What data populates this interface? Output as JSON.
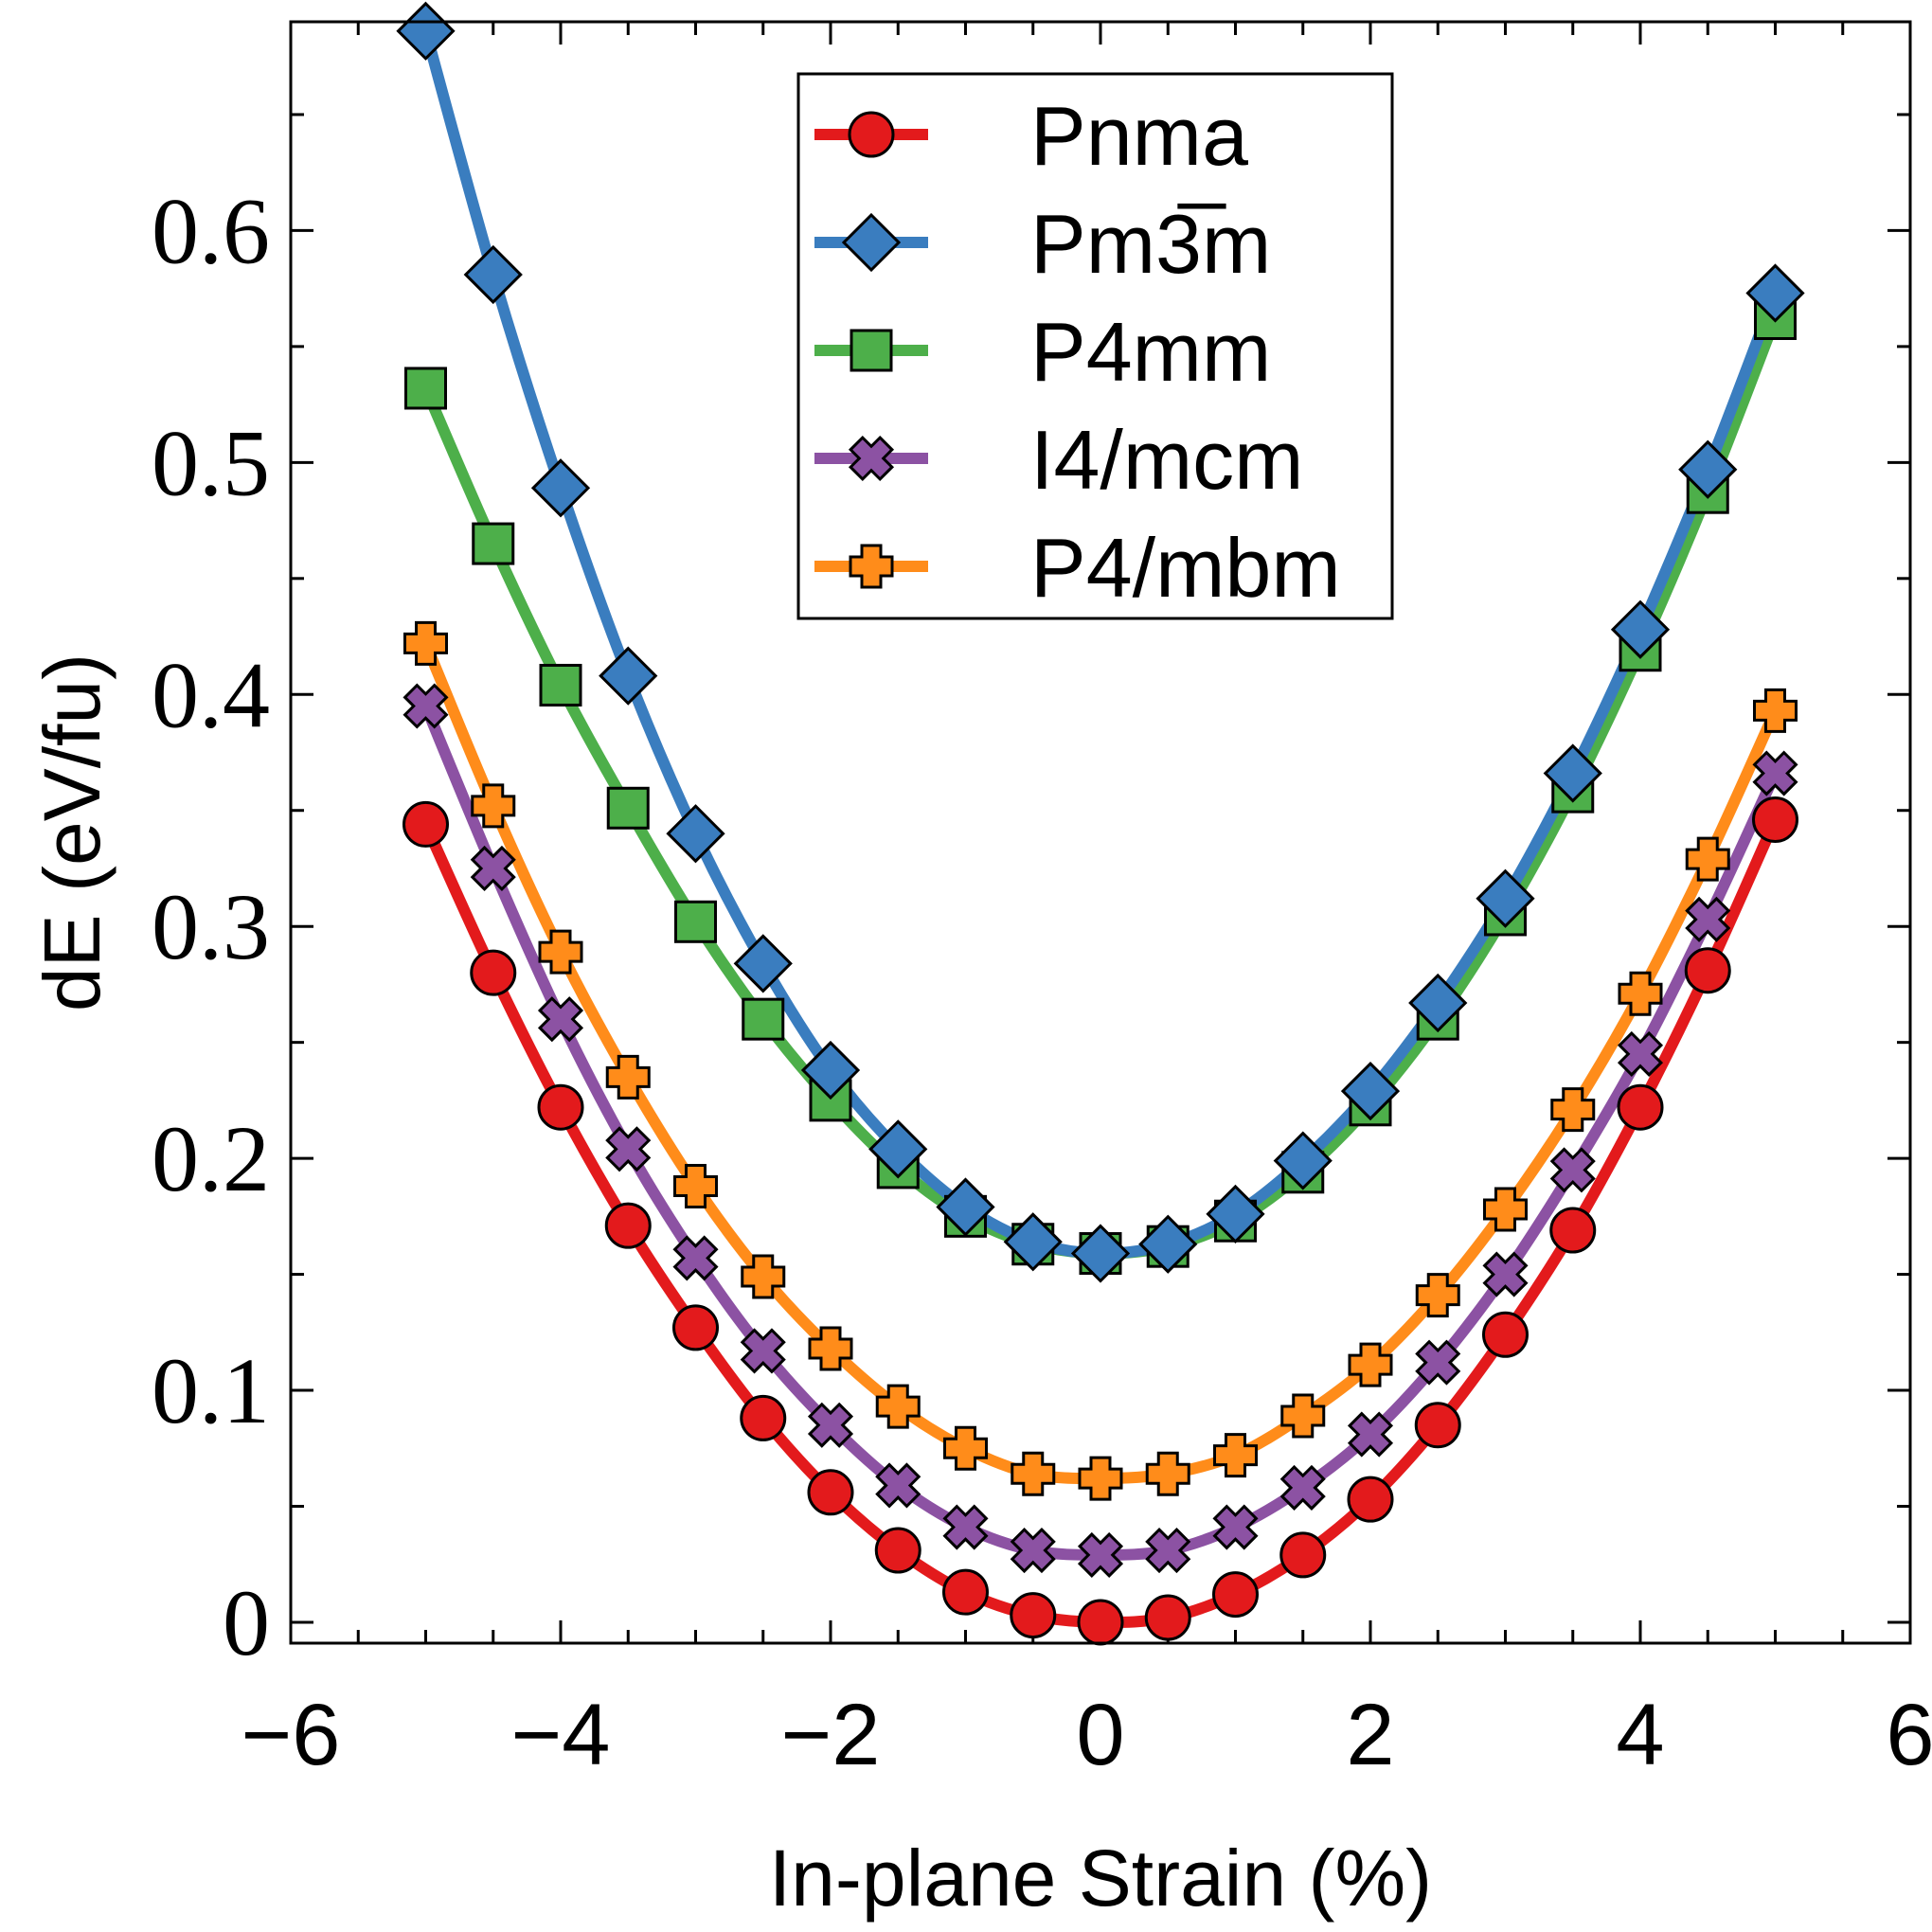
{
  "chart_data": {
    "type": "line",
    "title": "",
    "xlabel": "In-plane Strain (%)",
    "ylabel": "dE (eV/fu)",
    "xlim": [
      -6,
      6
    ],
    "ylim": [
      -0.009,
      0.69
    ],
    "xticks": [
      -6,
      -4,
      -2,
      0,
      2,
      4,
      6
    ],
    "xtick_labels": [
      "−6",
      "−4",
      "−2",
      "0",
      "2",
      "4",
      "6"
    ],
    "yticks": [
      0,
      0.1,
      0.2,
      0.3,
      0.4,
      0.5,
      0.6
    ],
    "ytick_labels": [
      "0",
      "0.1",
      "0.2",
      "0.3",
      "0.4",
      "0.5",
      "0.6"
    ],
    "grid": false,
    "legend_position": "top-center",
    "x": [
      -5,
      -4.5,
      -4,
      -3.5,
      -3,
      -2.5,
      -2,
      -1.5,
      -1,
      -0.5,
      0,
      0.5,
      1,
      1.5,
      2,
      2.5,
      3,
      3.5,
      4,
      4.5,
      5
    ],
    "series": [
      {
        "name": "Pnma",
        "color": "#e31a1c",
        "marker": "circle",
        "values": [
          0.344,
          0.28,
          0.222,
          0.171,
          0.127,
          0.088,
          0.056,
          0.031,
          0.013,
          0.003,
          0.0,
          0.002,
          0.012,
          0.029,
          0.053,
          0.085,
          0.124,
          0.169,
          0.222,
          0.281,
          0.346
        ]
      },
      {
        "name": "Pm3̅m",
        "color": "#3a7dbf",
        "marker": "diamond",
        "values": [
          0.686,
          0.581,
          0.489,
          0.408,
          0.34,
          0.284,
          0.238,
          0.204,
          0.179,
          0.164,
          0.159,
          0.163,
          0.176,
          0.199,
          0.229,
          0.267,
          0.312,
          0.366,
          0.428,
          0.497,
          0.573
        ]
      },
      {
        "name": "P4mm",
        "color": "#4daf4a",
        "marker": "square",
        "values": [
          0.532,
          0.465,
          0.404,
          0.351,
          0.302,
          0.26,
          0.225,
          0.196,
          0.175,
          0.163,
          0.159,
          0.162,
          0.173,
          0.194,
          0.223,
          0.26,
          0.305,
          0.358,
          0.419,
          0.487,
          0.562
        ]
      },
      {
        "name": "I4/mcm",
        "color": "#8c52a3",
        "marker": "x",
        "values": [
          0.395,
          0.325,
          0.26,
          0.204,
          0.157,
          0.117,
          0.085,
          0.059,
          0.041,
          0.031,
          0.029,
          0.031,
          0.041,
          0.058,
          0.081,
          0.112,
          0.15,
          0.195,
          0.245,
          0.303,
          0.366
        ]
      },
      {
        "name": "P4/mbm",
        "color": "#ff8c1a",
        "marker": "plus",
        "values": [
          0.422,
          0.352,
          0.289,
          0.235,
          0.188,
          0.149,
          0.118,
          0.093,
          0.075,
          0.064,
          0.062,
          0.064,
          0.072,
          0.089,
          0.111,
          0.141,
          0.178,
          0.221,
          0.271,
          0.329,
          0.393
        ]
      }
    ]
  }
}
